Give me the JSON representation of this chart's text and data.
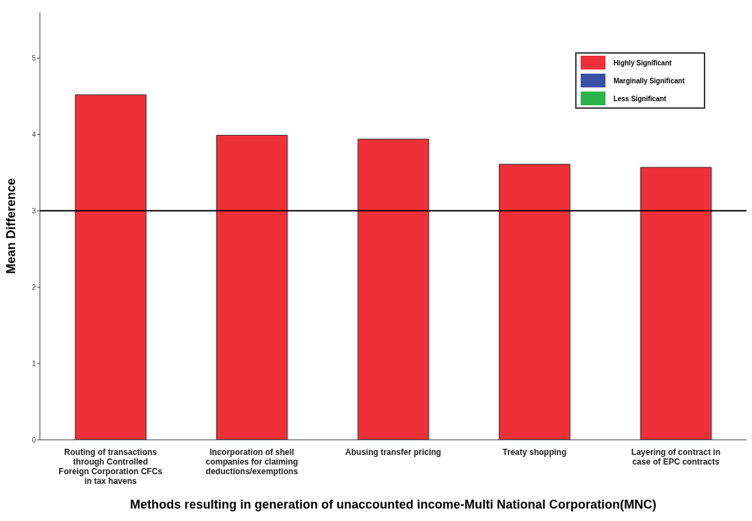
{
  "chart_data": {
    "type": "bar",
    "xlabel": "Methods resulting in generation of unaccounted income-Multi National Corporation(MNC)",
    "ylabel": "Mean Difference",
    "categories": [
      "Routing of transactions through Controlled Foreign Corporation CFCs in tax havens",
      "Incorporation of shell companies for claiming deductions/exemptions",
      "Abusing transfer pricing",
      "Treaty shopping",
      "Layering of contract in case of EPC contracts"
    ],
    "series": [
      {
        "name": "Highly Significant",
        "color": "#ee3139",
        "values": [
          4.52,
          3.99,
          3.94,
          3.61,
          3.57
        ]
      },
      {
        "name": "Marginally Significant",
        "color": "#3a4fa8",
        "values": [
          null,
          null,
          null,
          null,
          null
        ]
      },
      {
        "name": "Less Significant",
        "color": "#2eb34a",
        "values": [
          null,
          null,
          null,
          null,
          null
        ]
      }
    ],
    "stacked": true,
    "ylim": [
      0,
      5.6
    ],
    "yticks": [
      0,
      1,
      2,
      3,
      4,
      5
    ],
    "grid": false,
    "legend": "top right",
    "ref_lines": [
      {
        "axis": "y",
        "value": 3,
        "color": "#000000"
      }
    ]
  }
}
